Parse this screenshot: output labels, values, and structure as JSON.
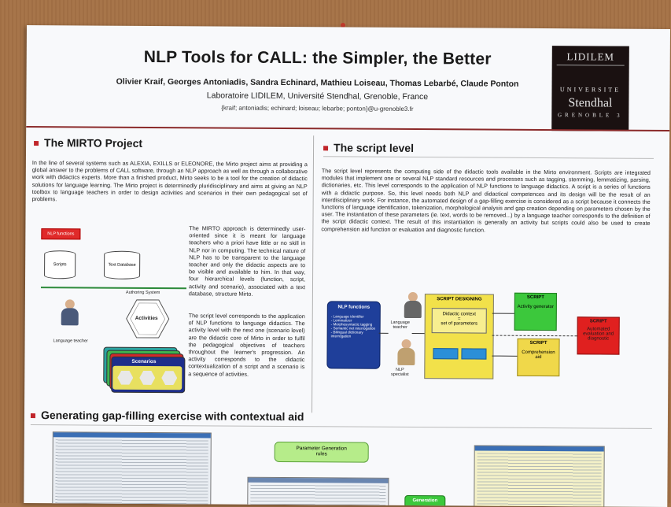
{
  "poster": {
    "title": "NLP Tools for CALL: the Simpler, the Better",
    "authors": "Olivier Kraif, Georges Antoniadis, Sandra Echinard, Mathieu Loiseau, Thomas Lebarbé, Claude Ponton",
    "lab": "Laboratoire LIDILEM, Université Stendhal, Grenoble, France",
    "emails": "{kraif; antoniadis; echinard; loiseau; lebarbe; ponton}@u-grenoble3.fr"
  },
  "logo": {
    "line1": "LIDILEM",
    "line2": "UNIVERSITE",
    "line3": "Stendhal",
    "line4": "GRENOBLE 3"
  },
  "mirto": {
    "heading": "The MIRTO Project",
    "intro": "In the line of several systems such as ALEXIA, EXILLS or ELEONORE, the Mirto project aims at providing a global answer to the problems of CALL software, through an NLP approach as well as through a collaborative work with didactics experts. More than a finished product, Mirto seeks to be a tool for the creation of didactic solutions for language learning. The Mirto project is determinedly pluridisciplinary and aims at giving an NLP toolbox to language teachers in order to design activities and scenarios in their own pedagogical set of problems.",
    "para1": "The MIRTO approach is determinedly user-oriented since it is meant for language teachers who a priori have little or no skill in NLP nor in computing. The technical nature of NLP has to be transparent to the language teacher and only the didactic aspects are to be visible and available to him. In that way, four hierarchical levels (function, script, activity and scenario), associated with a text database, structure Mirto.",
    "para2": "The script level corresponds to the application of NLP functions to language didactics. The activity level with the next one (scenario level) are the didactic core of Mirto in order to fulfil the pedagogical objectives of teachers throughout the learner's progression. An activity corresponds to the didactic contextualization of a script and a scenario is a sequence of activities.",
    "diagram": {
      "nlp_functions": "NLP functions",
      "scripts": "Scripts",
      "text_database": "Text Database",
      "authoring_system": "Authoring System",
      "activities": "Activities",
      "scenarios": "Scenarios",
      "language_teacher": "Language teacher"
    }
  },
  "script": {
    "heading": "The script level",
    "body": "The script level represents the computing side of the didactic tools available in the Mirto environment. Scripts are integrated modules that implement one or several NLP standard resources and processes such as tagging, stemming, lemmatizing, parsing, dictionaries, etc. This level corresponds to the application of NLP functions to language didactics. A script is a series of functions with a didactic purpose. So, this level needs both NLP and didactical competences and its design will be the result of an interdisciplinary work. For instance, the automated design of a gap-filling exercise is considered as a script because it connects the functions of language identification, tokenization, morphological analysis and gap creation depending on parameters chosen by the user. The instantiation of these parameters (ie. text, words to be removed...) by a language teacher corresponds to the definition of the script didactic context. The result of this instantiation is generally an activity but scripts could also be used to create comprehension aid function or evaluation and diagnostic function.",
    "diagram": {
      "nlp_functions": "NLP functions",
      "functions_list": [
        "- Language identifier",
        "- Lemmatizer",
        "- Morphosyntactic tagging",
        "- Semantic net interrogation",
        "- Bilingual dictionary interrogation"
      ],
      "language_teacher": "Language teacher",
      "nlp_specialist": "NLP specialist",
      "script_designing": "SCRIPT DESIGNING",
      "didactic_context": "Didactic context",
      "equals": "=",
      "set_of_parameters": "set of parameters",
      "script1_title": "SCRIPT",
      "script1_text": "Activity generator",
      "script2_title": "SCRIPT",
      "script2_text": "Comprehension aid",
      "script3_title": "SCRIPT",
      "script3_text": "Automated evaluation and diagnostic"
    }
  },
  "gap": {
    "heading": "Generating gap-filling exercise with contextual aid",
    "param_box": "Parameter Generation rules",
    "generation": "Generation"
  },
  "colors": {
    "accent_red": "#c0252a",
    "rule_red": "#8b2a2a",
    "nlp_blue": "#1f3f9a",
    "script_yellow": "#f2e14a",
    "script_green": "#3cc83c",
    "script_red": "#e0201f"
  }
}
